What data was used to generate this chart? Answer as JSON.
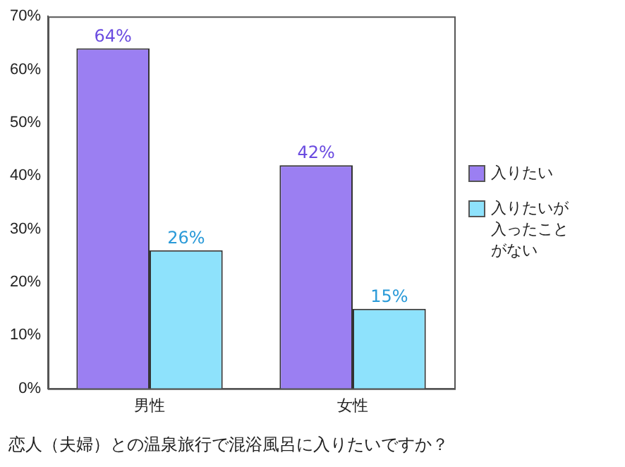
{
  "chart_data": {
    "type": "bar",
    "title": "恋人（夫婦）との温泉旅行で混浴風呂に入りたいですか？",
    "categories": [
      "男性",
      "女性"
    ],
    "series": [
      {
        "name": "入りたい",
        "color": "#9b7ff2",
        "values": [
          64,
          42
        ],
        "value_labels": [
          "64%",
          "42%"
        ]
      },
      {
        "name": "入りたいが入ったことがない",
        "color": "#8ee2fc",
        "values": [
          26,
          15
        ],
        "value_labels": [
          "26%",
          "15%"
        ]
      }
    ],
    "ylim": [
      0,
      70
    ],
    "yticks": [
      {
        "value": 0,
        "label": "0%"
      },
      {
        "value": 10,
        "label": "10%"
      },
      {
        "value": 20,
        "label": "20%"
      },
      {
        "value": 30,
        "label": "30%"
      },
      {
        "value": 40,
        "label": "40%"
      },
      {
        "value": 50,
        "label": "50%"
      },
      {
        "value": 60,
        "label": "60%"
      },
      {
        "value": 70,
        "label": "70%"
      }
    ],
    "grid": false,
    "legend": "right"
  }
}
